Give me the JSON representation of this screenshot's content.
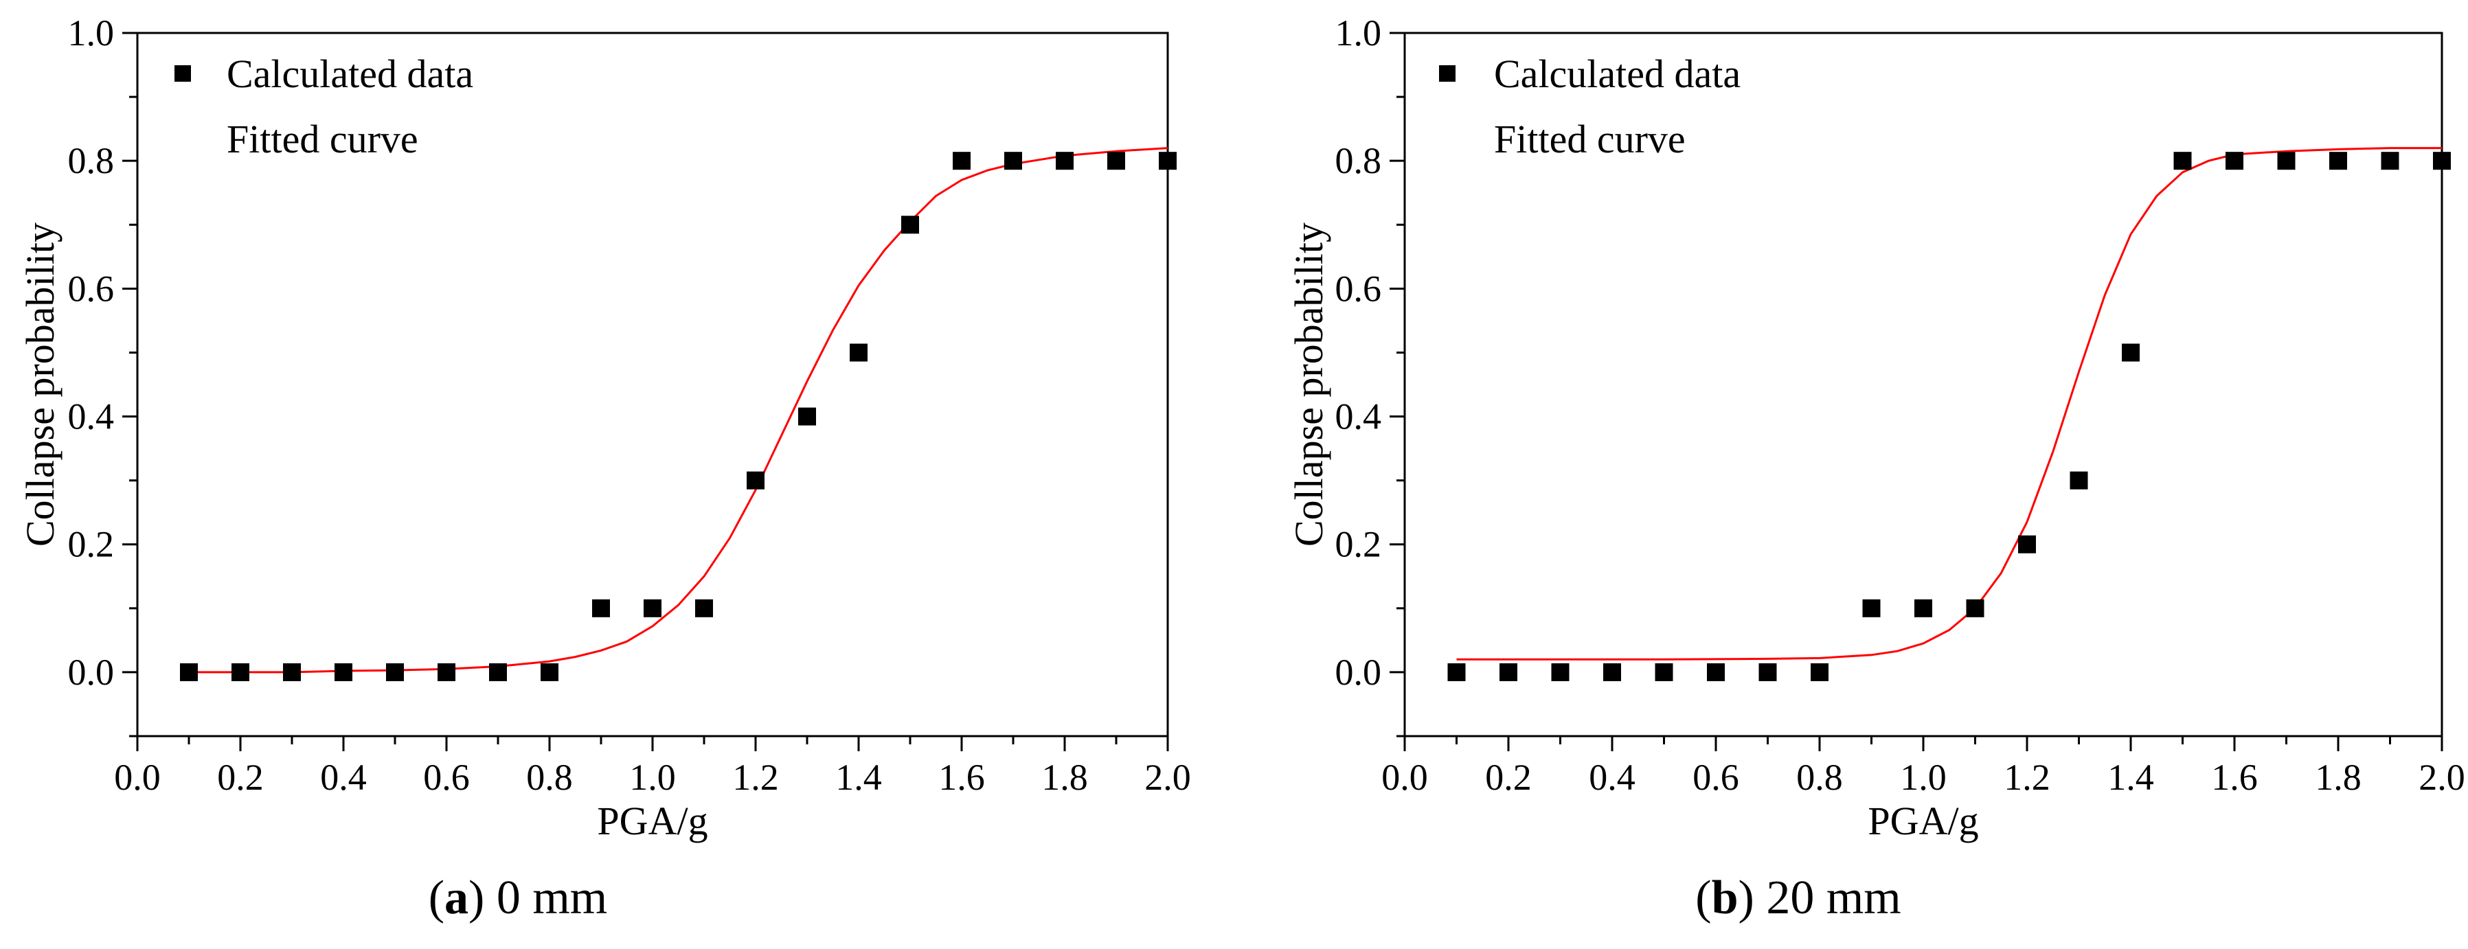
{
  "chart_data": [
    {
      "type": "scatter",
      "caption": {
        "letter": "a",
        "text": "0 mm"
      },
      "xlabel": "PGA/g",
      "ylabel": "Collapse probability",
      "xlim": [
        0.0,
        2.0
      ],
      "ylim": [
        -0.1,
        1.0
      ],
      "xticks": [
        "0.0",
        "0.2",
        "0.4",
        "0.6",
        "0.8",
        "1.0",
        "1.2",
        "1.4",
        "1.6",
        "1.8",
        "2.0"
      ],
      "yticks": [
        "0.0",
        "0.2",
        "0.4",
        "0.6",
        "0.8",
        "1.0"
      ],
      "legend": {
        "position": "top-left",
        "entries": [
          "Calculated data",
          "Fitted curve"
        ]
      },
      "series": [
        {
          "name": "Calculated data",
          "kind": "scatter",
          "marker": "square",
          "color": "#000000",
          "x": [
            0.1,
            0.2,
            0.3,
            0.4,
            0.5,
            0.6,
            0.7,
            0.8,
            0.9,
            1.0,
            1.1,
            1.2,
            1.3,
            1.4,
            1.5,
            1.6,
            1.7,
            1.8,
            1.9,
            2.0
          ],
          "values": [
            0.0,
            0.0,
            0.0,
            0.0,
            0.0,
            0.0,
            0.0,
            0.0,
            0.1,
            0.1,
            0.1,
            0.3,
            0.4,
            0.5,
            0.7,
            0.8,
            0.8,
            0.8,
            0.8,
            0.8
          ]
        },
        {
          "name": "Fitted curve",
          "kind": "line",
          "color": "#ff0000",
          "x": [
            0.1,
            0.2,
            0.3,
            0.4,
            0.5,
            0.6,
            0.7,
            0.8,
            0.85,
            0.9,
            0.95,
            1.0,
            1.05,
            1.1,
            1.15,
            1.2,
            1.25,
            1.3,
            1.35,
            1.4,
            1.45,
            1.5,
            1.55,
            1.6,
            1.65,
            1.7,
            1.8,
            1.9,
            2.0
          ],
          "values": [
            0.0,
            0.0,
            0.0,
            0.002,
            0.003,
            0.005,
            0.009,
            0.017,
            0.024,
            0.034,
            0.048,
            0.072,
            0.105,
            0.15,
            0.21,
            0.285,
            0.37,
            0.455,
            0.535,
            0.605,
            0.66,
            0.705,
            0.745,
            0.77,
            0.785,
            0.795,
            0.808,
            0.815,
            0.82
          ]
        }
      ]
    },
    {
      "type": "scatter",
      "caption": {
        "letter": "b",
        "text": "20 mm"
      },
      "xlabel": "PGA/g",
      "ylabel": "Collapse probability",
      "xlim": [
        0.0,
        2.0
      ],
      "ylim": [
        -0.1,
        1.0
      ],
      "xticks": [
        "0.0",
        "0.2",
        "0.4",
        "0.6",
        "0.8",
        "1.0",
        "1.2",
        "1.4",
        "1.6",
        "1.8",
        "2.0"
      ],
      "yticks": [
        "0.0",
        "0.2",
        "0.4",
        "0.6",
        "0.8",
        "1.0"
      ],
      "legend": {
        "position": "top-left",
        "entries": [
          "Calculated data",
          "Fitted curve"
        ]
      },
      "series": [
        {
          "name": "Calculated data",
          "kind": "scatter",
          "marker": "square",
          "color": "#000000",
          "x": [
            0.1,
            0.2,
            0.3,
            0.4,
            0.5,
            0.6,
            0.7,
            0.8,
            0.9,
            1.0,
            1.1,
            1.2,
            1.3,
            1.4,
            1.5,
            1.6,
            1.7,
            1.8,
            1.9,
            2.0
          ],
          "values": [
            0.0,
            0.0,
            0.0,
            0.0,
            0.0,
            0.0,
            0.0,
            0.0,
            0.1,
            0.1,
            0.1,
            0.2,
            0.3,
            0.5,
            0.8,
            0.8,
            0.8,
            0.8,
            0.8,
            0.8
          ]
        },
        {
          "name": "Fitted curve",
          "kind": "line",
          "color": "#ff0000",
          "x": [
            0.1,
            0.3,
            0.5,
            0.7,
            0.8,
            0.9,
            0.95,
            1.0,
            1.05,
            1.1,
            1.15,
            1.2,
            1.25,
            1.3,
            1.35,
            1.4,
            1.45,
            1.5,
            1.55,
            1.6,
            1.7,
            1.8,
            1.9,
            2.0
          ],
          "values": [
            0.02,
            0.02,
            0.02,
            0.021,
            0.022,
            0.027,
            0.033,
            0.045,
            0.066,
            0.1,
            0.155,
            0.235,
            0.345,
            0.47,
            0.59,
            0.685,
            0.745,
            0.782,
            0.8,
            0.81,
            0.815,
            0.818,
            0.82,
            0.82
          ]
        }
      ]
    }
  ]
}
